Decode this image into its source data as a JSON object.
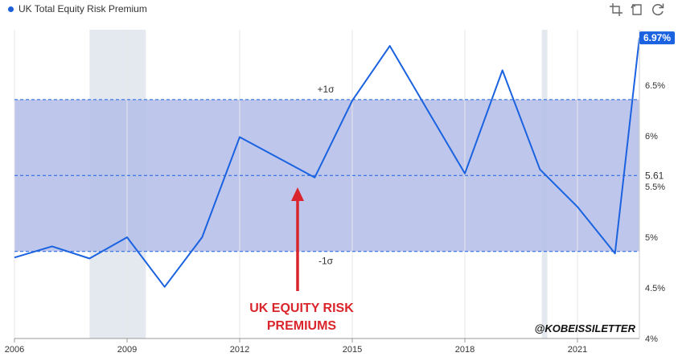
{
  "legend": {
    "label": "UK Total Equity Risk Premium"
  },
  "toolbar": {
    "icons": [
      "crop-icon",
      "reset-zoom-icon",
      "refresh-icon"
    ]
  },
  "colors": {
    "line": "#1a62e0",
    "band": "#b5bfe8",
    "recession": "#dfe5ec",
    "label_bg": "#1a62e0",
    "annotation": "#d9252b"
  },
  "chart_data": {
    "type": "line",
    "title": "UK Total Equity Risk Premium",
    "xlabel": "",
    "ylabel": "",
    "xlim": [
      2006,
      2022.65
    ],
    "ylim": [
      4,
      7.05
    ],
    "x_ticks": [
      "2006",
      "2009",
      "2012",
      "2015",
      "2018",
      "2021"
    ],
    "x_tick_values": [
      2006,
      2009,
      2012,
      2015,
      2018,
      2021
    ],
    "y_ticks": [
      "4%",
      "4.5%",
      "5%",
      "5.5%",
      "6%",
      "6.5%"
    ],
    "y_tick_values": [
      4,
      4.5,
      5,
      5.5,
      6,
      6.5
    ],
    "series": [
      {
        "name": "UK Total Equity Risk Premium",
        "x": [
          2006,
          2007,
          2008,
          2009,
          2010,
          2011,
          2012,
          2013,
          2014,
          2015,
          2016,
          2017,
          2018,
          2019,
          2020,
          2021,
          2022,
          2022.65
        ],
        "values": [
          4.8,
          4.91,
          4.79,
          5.0,
          4.51,
          5.0,
          5.99,
          5.79,
          5.59,
          6.35,
          6.89,
          6.26,
          5.63,
          6.65,
          5.67,
          5.3,
          4.84,
          6.97
        ]
      }
    ],
    "mean": {
      "value": 5.61,
      "label": "5.61"
    },
    "std_band": {
      "upper": 6.36,
      "lower": 4.86,
      "upper_label": "+1σ",
      "lower_label": "-1σ"
    },
    "recessions": [
      [
        2008,
        2009.5
      ],
      [
        2020.05,
        2020.2
      ]
    ],
    "last_value_label": "6.97%",
    "annotation": {
      "line1": "UK EQUITY RISK",
      "line2": "PREMIUMS"
    },
    "watermark": "@KOBEISSILETTER"
  }
}
